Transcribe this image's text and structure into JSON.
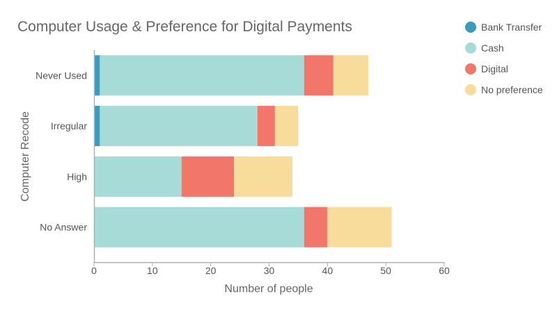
{
  "chart_data": {
    "type": "bar",
    "orientation": "horizontal",
    "stacked": true,
    "title": "Computer Usage & Preference for Digital Payments",
    "xlabel": "Number of people",
    "ylabel": "Computer Recode",
    "xlim": [
      0,
      60
    ],
    "xticks": [
      0,
      10,
      20,
      30,
      40,
      50,
      60
    ],
    "xtick_labels": [
      "0",
      "10",
      "20",
      "30",
      "40",
      "50",
      "60"
    ],
    "grid": false,
    "legend_position": "top-right",
    "categories": [
      "Never Used",
      "Irregular",
      "High",
      "No Answer"
    ],
    "series": [
      {
        "name": "Bank Transfer",
        "color": "#3a9bbf",
        "values": [
          1,
          1,
          0,
          0
        ]
      },
      {
        "name": "Cash",
        "color": "#a6dbd7",
        "values": [
          35,
          27,
          15,
          36
        ]
      },
      {
        "name": "Digital",
        "color": "#f2766a",
        "values": [
          5,
          3,
          9,
          4
        ]
      },
      {
        "name": "No preference",
        "color": "#f7dc9c",
        "values": [
          6,
          4,
          10,
          11
        ]
      }
    ]
  }
}
